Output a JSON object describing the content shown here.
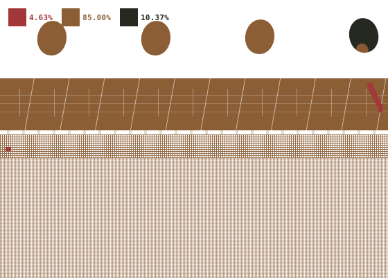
{
  "legend": [
    {
      "label": "4.63%",
      "color": "#a3383a"
    },
    {
      "label": "85.00%",
      "color": "#8b5e36"
    },
    {
      "label": "10.37%",
      "color": "#26291f"
    }
  ],
  "colors": {
    "brown": "#8b5e36",
    "red": "#a3383a",
    "dark": "#26291f",
    "background": "#ffffff"
  }
}
